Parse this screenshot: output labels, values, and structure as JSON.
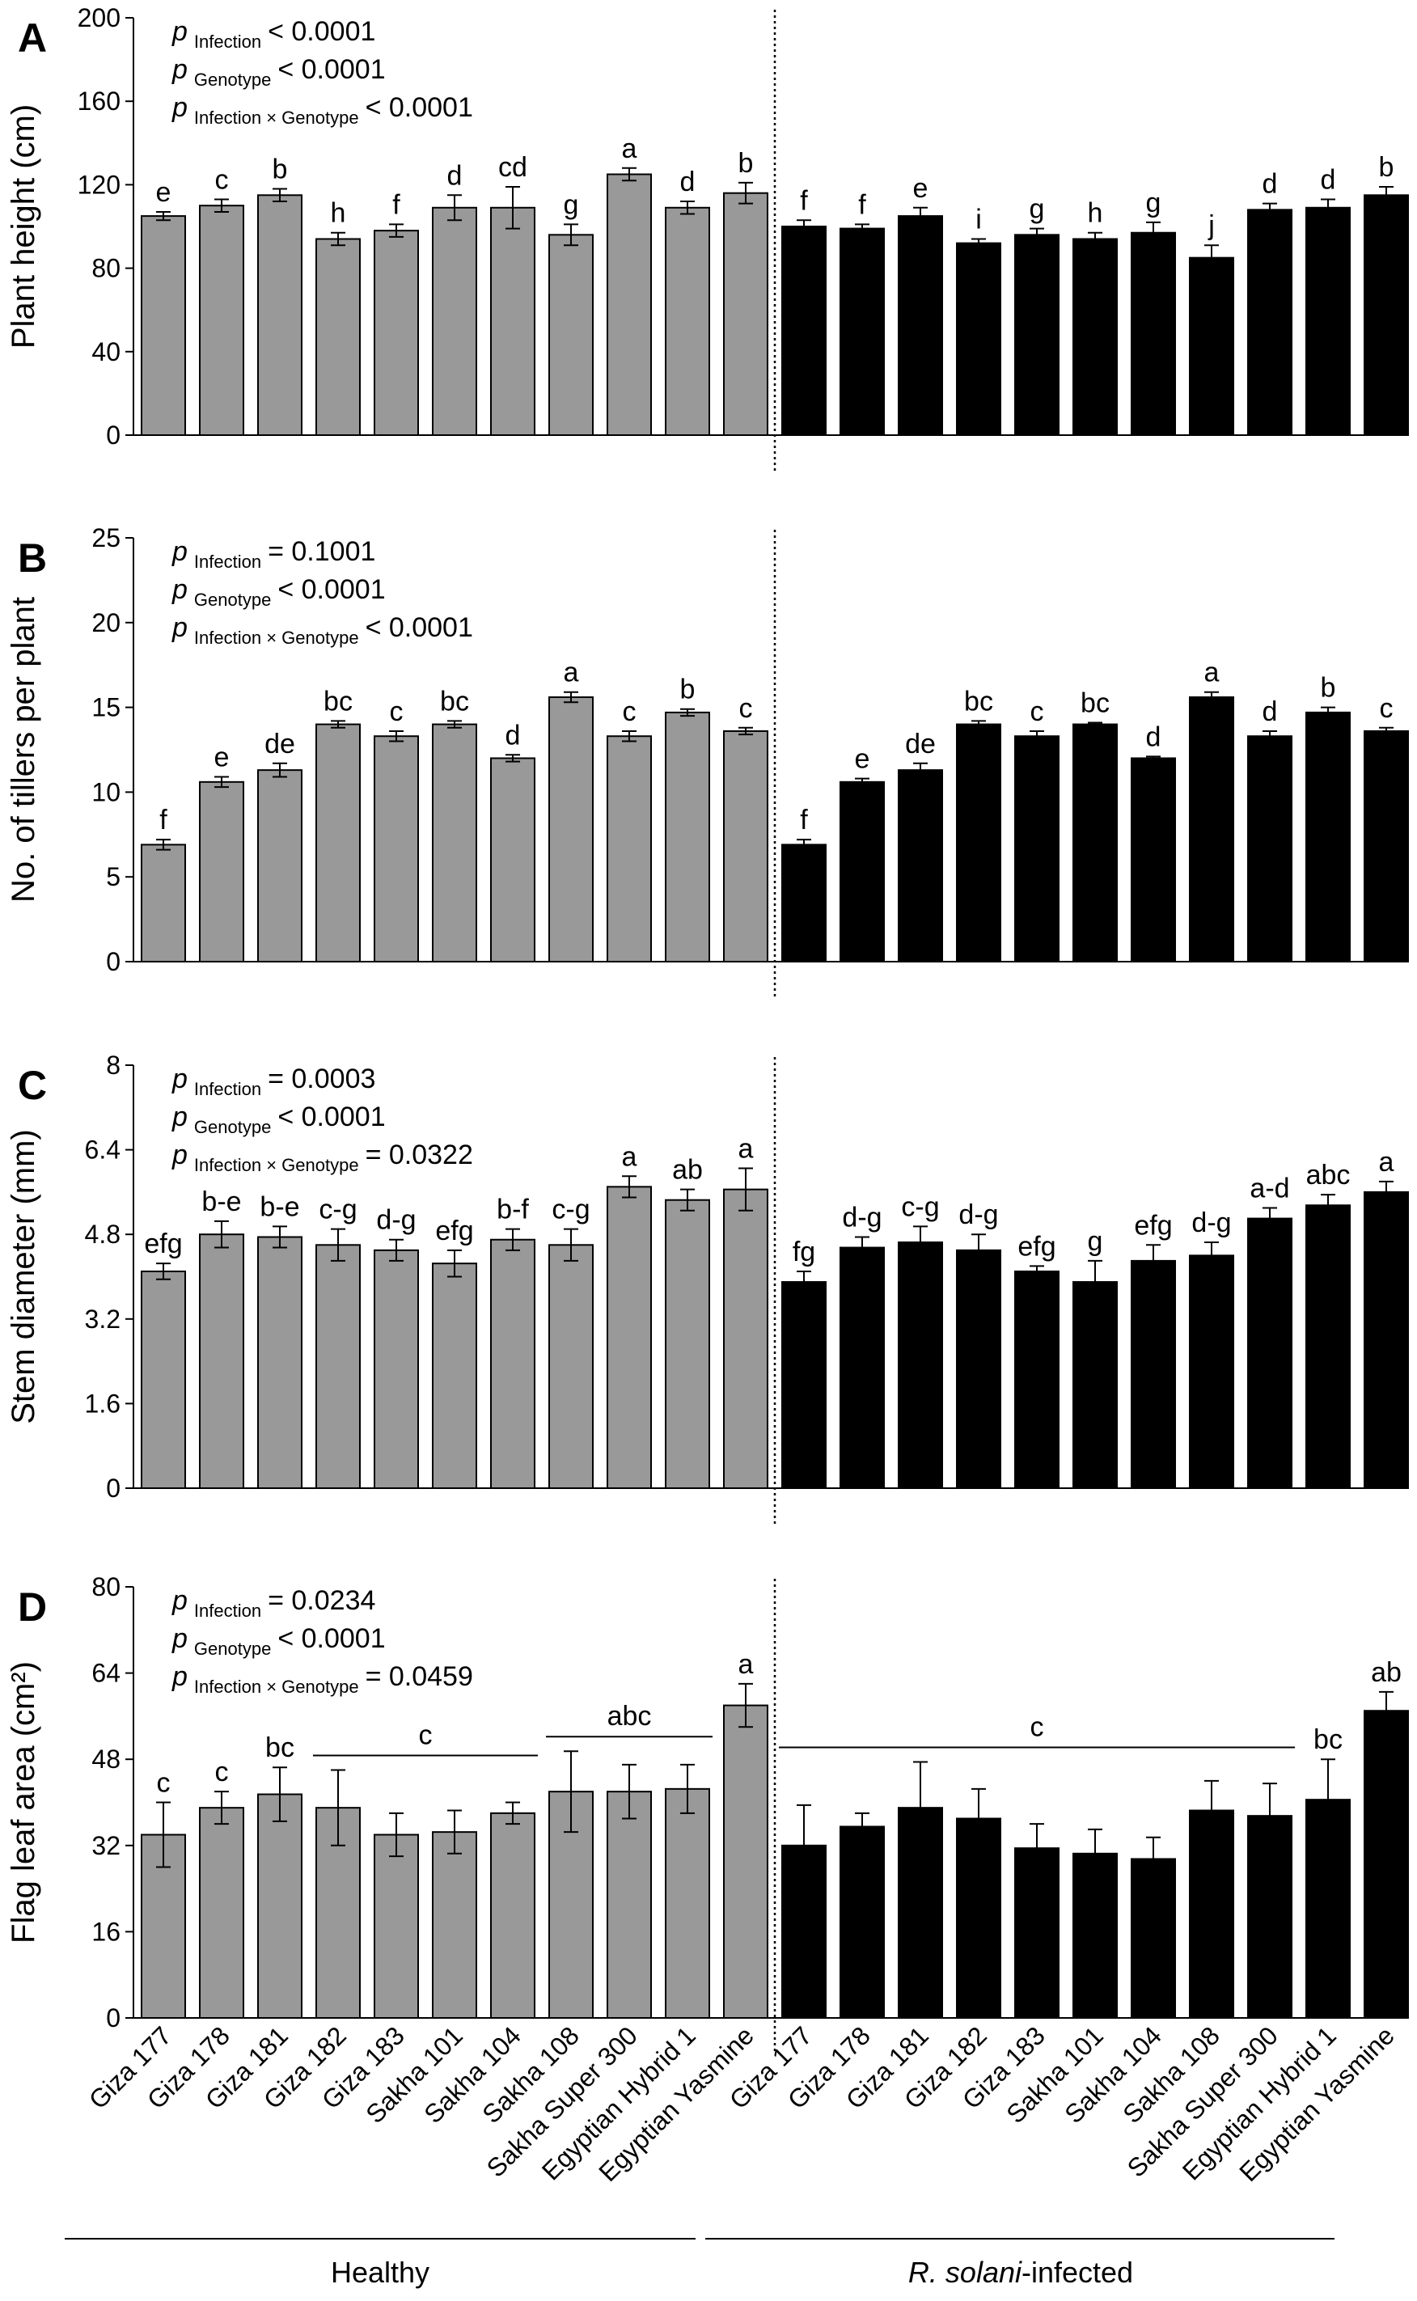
{
  "figure": {
    "categories": [
      "Giza 177",
      "Giza 178",
      "Giza 181",
      "Giza 182",
      "Giza 183",
      "Sakha 101",
      "Sakha 104",
      "Sakha 108",
      "Sakha Super 300",
      "Egyptian Hybrid 1",
      "Egyptian Yasmine"
    ],
    "group_labels": {
      "healthy": "Healthy",
      "infected_italic": "R. solani",
      "infected_suffix": "-infected"
    },
    "colors": {
      "healthy": "#999999",
      "infected": "#000000"
    }
  },
  "chart_data": [
    {
      "type": "bar",
      "panel": "A",
      "ylabel": "Plant height (cm)",
      "ylim": [
        0,
        200
      ],
      "yticks": [
        "0",
        "40",
        "80",
        "120",
        "160",
        "200"
      ],
      "stats": [
        {
          "p": "p",
          "sub": "Infection",
          "value": "< 0.0001"
        },
        {
          "p": "p",
          "sub": "Genotype",
          "value": "< 0.0001"
        },
        {
          "p": "p",
          "sub": "Infection × Genotype",
          "value": "< 0.0001"
        }
      ],
      "series": [
        {
          "name": "Healthy",
          "values": [
            105,
            110,
            115,
            94,
            98,
            109,
            109,
            96,
            125,
            109,
            116
          ],
          "errors": [
            2,
            3,
            3,
            3,
            3,
            6,
            10,
            5,
            3,
            3,
            5
          ],
          "letters": [
            "e",
            "c",
            "b",
            "h",
            "f",
            "d",
            "cd",
            "g",
            "a",
            "d",
            "b"
          ]
        },
        {
          "name": "R. solani-infected",
          "values": [
            100,
            99,
            105,
            92,
            96,
            94,
            97,
            85,
            108,
            109,
            115
          ],
          "errors": [
            3,
            2,
            4,
            2,
            3,
            3,
            5,
            6,
            3,
            4,
            4
          ],
          "letters": [
            "f",
            "f",
            "e",
            "i",
            "g",
            "h",
            "g",
            "j",
            "d",
            "d",
            "b"
          ]
        }
      ]
    },
    {
      "type": "bar",
      "panel": "B",
      "ylabel": "No. of tillers per plant",
      "ylim": [
        0,
        25
      ],
      "yticks": [
        "0",
        "5",
        "10",
        "15",
        "20",
        "25"
      ],
      "stats": [
        {
          "p": "p",
          "sub": "Infection",
          "value": "= 0.1001"
        },
        {
          "p": "p",
          "sub": "Genotype",
          "value": "< 0.0001"
        },
        {
          "p": "p",
          "sub": "Infection × Genotype",
          "value": "< 0.0001"
        }
      ],
      "series": [
        {
          "name": "Healthy",
          "values": [
            6.9,
            10.6,
            11.3,
            14.0,
            13.3,
            14.0,
            12.0,
            15.6,
            13.3,
            14.7,
            13.6
          ],
          "errors": [
            0.3,
            0.3,
            0.4,
            0.2,
            0.3,
            0.2,
            0.2,
            0.3,
            0.3,
            0.2,
            0.2
          ],
          "letters": [
            "f",
            "e",
            "de",
            "bc",
            "c",
            "bc",
            "d",
            "a",
            "c",
            "b",
            "c"
          ]
        },
        {
          "name": "R. solani-infected",
          "values": [
            6.9,
            10.6,
            11.3,
            14.0,
            13.3,
            14.0,
            12.0,
            15.6,
            13.3,
            14.7,
            13.6
          ],
          "errors": [
            0.3,
            0.2,
            0.4,
            0.2,
            0.3,
            0.1,
            0.1,
            0.3,
            0.3,
            0.3,
            0.2
          ],
          "letters": [
            "f",
            "e",
            "de",
            "bc",
            "c",
            "bc",
            "d",
            "a",
            "d",
            "b",
            "c"
          ]
        }
      ]
    },
    {
      "type": "bar",
      "panel": "C",
      "ylabel": "Stem diameter (mm)",
      "ylim": [
        0,
        8
      ],
      "yticks": [
        "0",
        "1.6",
        "3.2",
        "4.8",
        "6.4",
        "8"
      ],
      "stats": [
        {
          "p": "p",
          "sub": "Infection",
          "value": "= 0.0003"
        },
        {
          "p": "p",
          "sub": "Genotype",
          "value": "< 0.0001"
        },
        {
          "p": "p",
          "sub": "Infection × Genotype",
          "value": "= 0.0322"
        }
      ],
      "series": [
        {
          "name": "Healthy",
          "values": [
            4.1,
            4.8,
            4.75,
            4.6,
            4.5,
            4.25,
            4.7,
            4.6,
            5.7,
            5.45,
            5.65
          ],
          "errors": [
            0.15,
            0.25,
            0.2,
            0.3,
            0.2,
            0.25,
            0.2,
            0.3,
            0.2,
            0.2,
            0.4
          ],
          "letters": [
            "efg",
            "b-e",
            "b-e",
            "c-g",
            "d-g",
            "efg",
            "b-f",
            "c-g",
            "a",
            "ab",
            "a"
          ]
        },
        {
          "name": "R. solani-infected",
          "values": [
            3.9,
            4.55,
            4.65,
            4.5,
            4.1,
            3.9,
            4.3,
            4.4,
            5.1,
            5.35,
            5.6
          ],
          "errors": [
            0.2,
            0.2,
            0.3,
            0.3,
            0.1,
            0.4,
            0.3,
            0.25,
            0.2,
            0.2,
            0.2
          ],
          "letters": [
            "fg",
            "d-g",
            "c-g",
            "d-g",
            "efg",
            "g",
            "efg",
            "d-g",
            "a-d",
            "abc",
            "a"
          ]
        }
      ]
    },
    {
      "type": "bar",
      "panel": "D",
      "ylabel": "Flag leaf area (cm²)",
      "ylim": [
        0,
        80
      ],
      "yticks": [
        "0",
        "16",
        "32",
        "48",
        "64",
        "80"
      ],
      "stats": [
        {
          "p": "p",
          "sub": "Infection",
          "value": "= 0.0234"
        },
        {
          "p": "p",
          "sub": "Genotype",
          "value": "< 0.0001"
        },
        {
          "p": "p",
          "sub": "Infection × Genotype",
          "value": "= 0.0459"
        }
      ],
      "series": [
        {
          "name": "Healthy",
          "values": [
            34,
            39,
            41.5,
            39,
            34,
            34.5,
            38,
            42,
            42,
            42.5,
            58
          ],
          "errors": [
            6,
            3,
            5,
            7,
            4,
            4,
            2,
            7.5,
            5,
            4.5,
            4
          ],
          "letters": [
            "c",
            "c",
            "bc",
            "",
            "",
            "",
            "",
            "",
            "",
            "",
            "a"
          ]
        },
        {
          "name": "R. solani-infected",
          "values": [
            32,
            35.5,
            39,
            37,
            31.5,
            30.5,
            29.5,
            38.5,
            37.5,
            40.5,
            57
          ],
          "errors": [
            7.5,
            2.5,
            8.5,
            5.5,
            4.5,
            4.5,
            4,
            5.5,
            6,
            7.5,
            3.5
          ],
          "letters": [
            "",
            "",
            "",
            "",
            "",
            "",
            "",
            "",
            "",
            "bc",
            "ab"
          ]
        }
      ],
      "groups": [
        {
          "series": 0,
          "from": 3,
          "to": 6,
          "label": "c"
        },
        {
          "series": 0,
          "from": 7,
          "to": 9,
          "label": "abc"
        },
        {
          "series": 1,
          "from": 0,
          "to": 8,
          "label": "c"
        }
      ]
    }
  ]
}
